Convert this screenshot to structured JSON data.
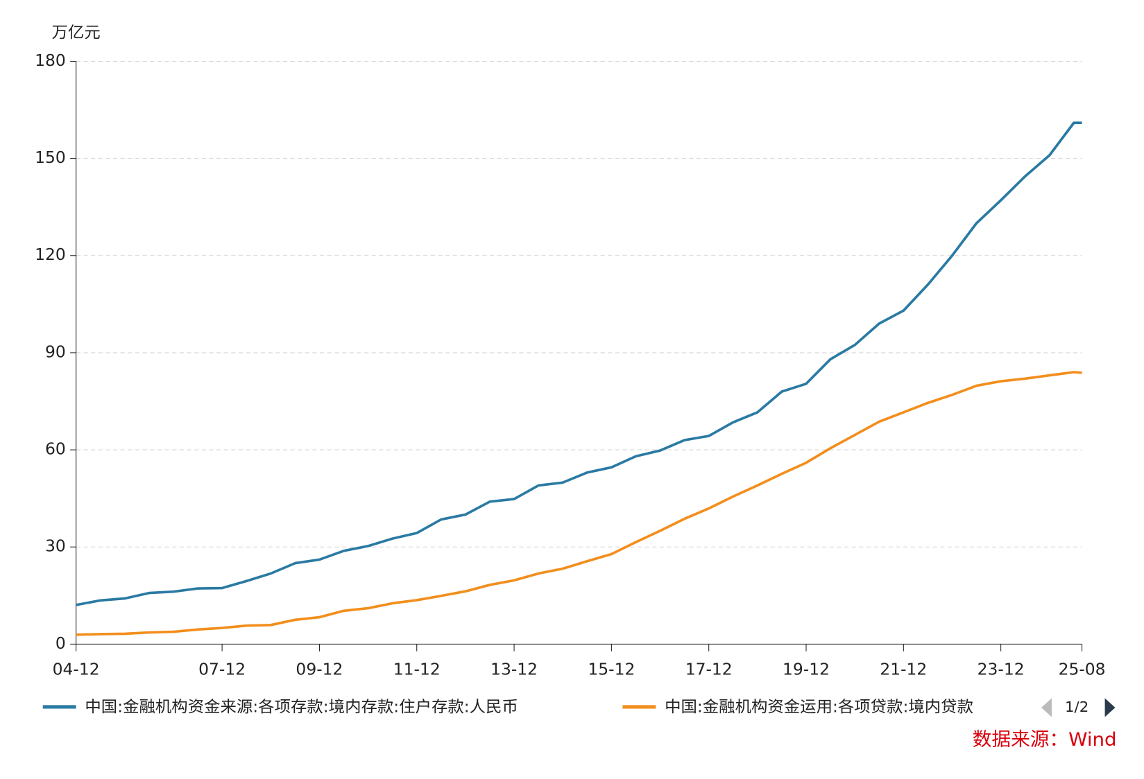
{
  "chart_data": {
    "type": "line",
    "y_label": "万亿元",
    "source": "数据来源：Wind",
    "pager": "1/2",
    "x": [
      "04-12",
      "05-06",
      "05-12",
      "06-06",
      "06-12",
      "07-06",
      "07-12",
      "08-06",
      "08-12",
      "09-06",
      "09-12",
      "10-06",
      "10-12",
      "11-06",
      "11-12",
      "12-06",
      "12-12",
      "13-06",
      "13-12",
      "14-06",
      "14-12",
      "15-06",
      "15-12",
      "16-06",
      "16-12",
      "17-06",
      "17-12",
      "18-06",
      "18-12",
      "19-06",
      "19-12",
      "20-06",
      "20-12",
      "21-06",
      "21-12",
      "22-06",
      "22-12",
      "23-06",
      "23-12",
      "24-06",
      "24-12",
      "25-06",
      "25-08"
    ],
    "series": [
      {
        "name": "中国:金融机构资金来源:各项存款:境内存款:住户存款:人民币",
        "color": "#2a7aa3",
        "values": [
          12.1,
          13.5,
          14.1,
          15.8,
          16.2,
          17.2,
          17.3,
          19.5,
          21.8,
          25.0,
          26.1,
          28.8,
          30.3,
          32.6,
          34.3,
          38.5,
          40.0,
          44.0,
          44.8,
          49.0,
          49.9,
          53.0,
          54.6,
          58.0,
          59.8,
          63.0,
          64.3,
          68.5,
          71.6,
          78.0,
          80.4,
          88.0,
          92.4,
          99.0,
          103.0,
          111.0,
          120.0,
          130.0,
          137.1,
          144.5,
          151.0,
          161.0,
          161.0
        ]
      },
      {
        "name": "中国:金融机构资金运用:各项贷款:境内贷款",
        "color": "#f28e1c",
        "values": [
          2.9,
          3.1,
          3.2,
          3.6,
          3.8,
          4.5,
          5.0,
          5.7,
          5.9,
          7.5,
          8.3,
          10.3,
          11.1,
          12.6,
          13.6,
          14.9,
          16.3,
          18.3,
          19.7,
          21.8,
          23.3,
          25.6,
          27.8,
          31.5,
          35.0,
          38.7,
          41.9,
          45.6,
          49.0,
          52.6,
          56.0,
          60.5,
          64.6,
          68.7,
          71.6,
          74.5,
          77.0,
          79.8,
          81.2,
          82.0,
          83.0,
          84.0,
          83.8
        ]
      }
    ],
    "xticks": [
      "04-12",
      "07-12",
      "09-12",
      "11-12",
      "13-12",
      "15-12",
      "17-12",
      "19-12",
      "21-12",
      "23-12",
      "25-08"
    ],
    "ylim": [
      0,
      180
    ],
    "yticks": [
      0,
      30,
      60,
      90,
      120,
      150,
      180
    ],
    "grid": true
  }
}
